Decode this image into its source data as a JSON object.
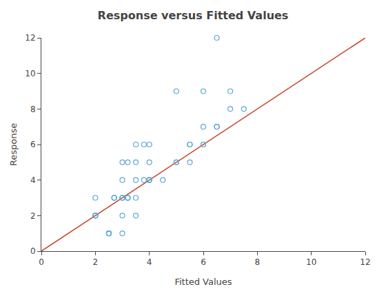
{
  "chart_data": {
    "type": "scatter",
    "title": "Response versus Fitted Values",
    "x_label": "Fitted Values",
    "y_label": "Response",
    "xlim": [
      0,
      12
    ],
    "ylim": [
      0,
      12
    ],
    "xticks": [
      0,
      2,
      4,
      6,
      8,
      10,
      12
    ],
    "yticks": [
      0,
      2,
      4,
      6,
      8,
      10,
      12
    ],
    "grid": false,
    "series": [
      {
        "type": "scatter",
        "color": "#5BA8D4",
        "marker": "circle-open",
        "x": [
          2.0,
          2.0,
          2.0,
          2.0,
          2.0,
          2.5,
          2.5,
          2.5,
          2.5,
          2.7,
          2.7,
          2.7,
          3.0,
          3.0,
          3.0,
          3.0,
          3.0,
          3.0,
          3.0,
          3.2,
          3.2,
          3.2,
          3.2,
          3.5,
          3.5,
          3.5,
          3.5,
          3.5,
          3.8,
          3.8,
          4.0,
          4.0,
          4.0,
          4.0,
          4.0,
          4.5,
          5.0,
          5.0,
          5.0,
          5.5,
          5.5,
          5.5,
          6.0,
          6.0,
          6.0,
          6.0,
          6.5,
          6.5,
          7.0,
          7.0,
          7.5,
          6.5
        ],
        "values": [
          2.0,
          2.0,
          2.0,
          2.0,
          3.0,
          1.0,
          1.0,
          1.0,
          1.0,
          3.0,
          3.0,
          3.0,
          1.0,
          2.0,
          3.0,
          3.0,
          3.0,
          4.0,
          5.0,
          3.0,
          3.0,
          3.0,
          5.0,
          2.0,
          3.0,
          4.0,
          5.0,
          6.0,
          4.0,
          6.0,
          4.0,
          4.0,
          4.0,
          5.0,
          6.0,
          4.0,
          5.0,
          5.0,
          9.0,
          5.0,
          6.0,
          6.0,
          6.0,
          6.0,
          7.0,
          9.0,
          7.0,
          7.0,
          8.0,
          9.0,
          8.0,
          12.0
        ]
      },
      {
        "type": "line",
        "color": "#C8432A",
        "line_style": "solid",
        "x": [
          0,
          12
        ],
        "values": [
          0,
          12
        ]
      }
    ]
  }
}
